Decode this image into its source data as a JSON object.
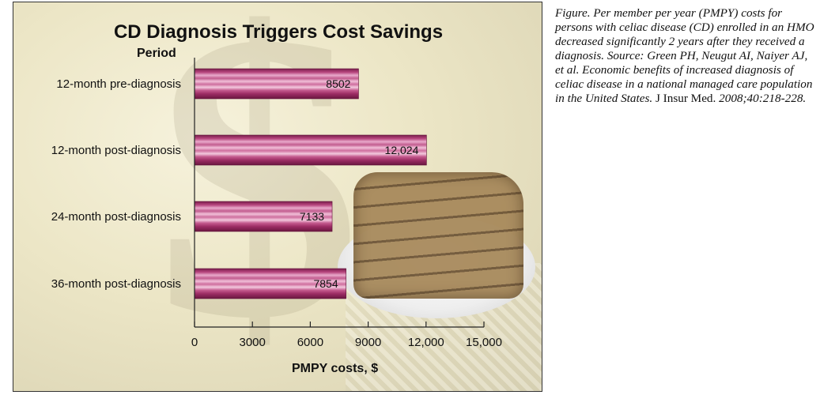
{
  "chart_data": {
    "type": "bar",
    "orientation": "horizontal",
    "title": "CD Diagnosis Triggers Cost Savings",
    "ylabel": "Period",
    "xlabel": "PMPY costs, $",
    "categories": [
      "12-month pre-diagnosis",
      "12-month post-diagnosis",
      "24-month post-diagnosis",
      "36-month post-diagnosis"
    ],
    "values": [
      8502,
      12024,
      7133,
      7854
    ],
    "data_labels": [
      "8502",
      "12,024",
      "7133",
      "7854"
    ],
    "xlim": [
      0,
      15000
    ],
    "x_ticks": [
      0,
      3000,
      6000,
      9000,
      12000,
      15000
    ],
    "x_tick_labels": [
      "0",
      "3000",
      "6000",
      "9000",
      "12,000",
      "15,000"
    ],
    "grid": false,
    "legend": "none",
    "bar_color": "#a3306a"
  },
  "caption": {
    "italic_part": "Figure. Per member per year (PMPY) costs for persons with celiac disease (CD) enrolled in an HMO decreased significantly 2 years after they received a diagnosis. Source: Green PH, Neugut AI, Naiyer AJ, et al. Economic benefits of increased diagnosis of celiac disease in a national managed care population in the United States.",
    "journal": " J Insur Med.",
    "citation": " 2008;40:218-228."
  }
}
